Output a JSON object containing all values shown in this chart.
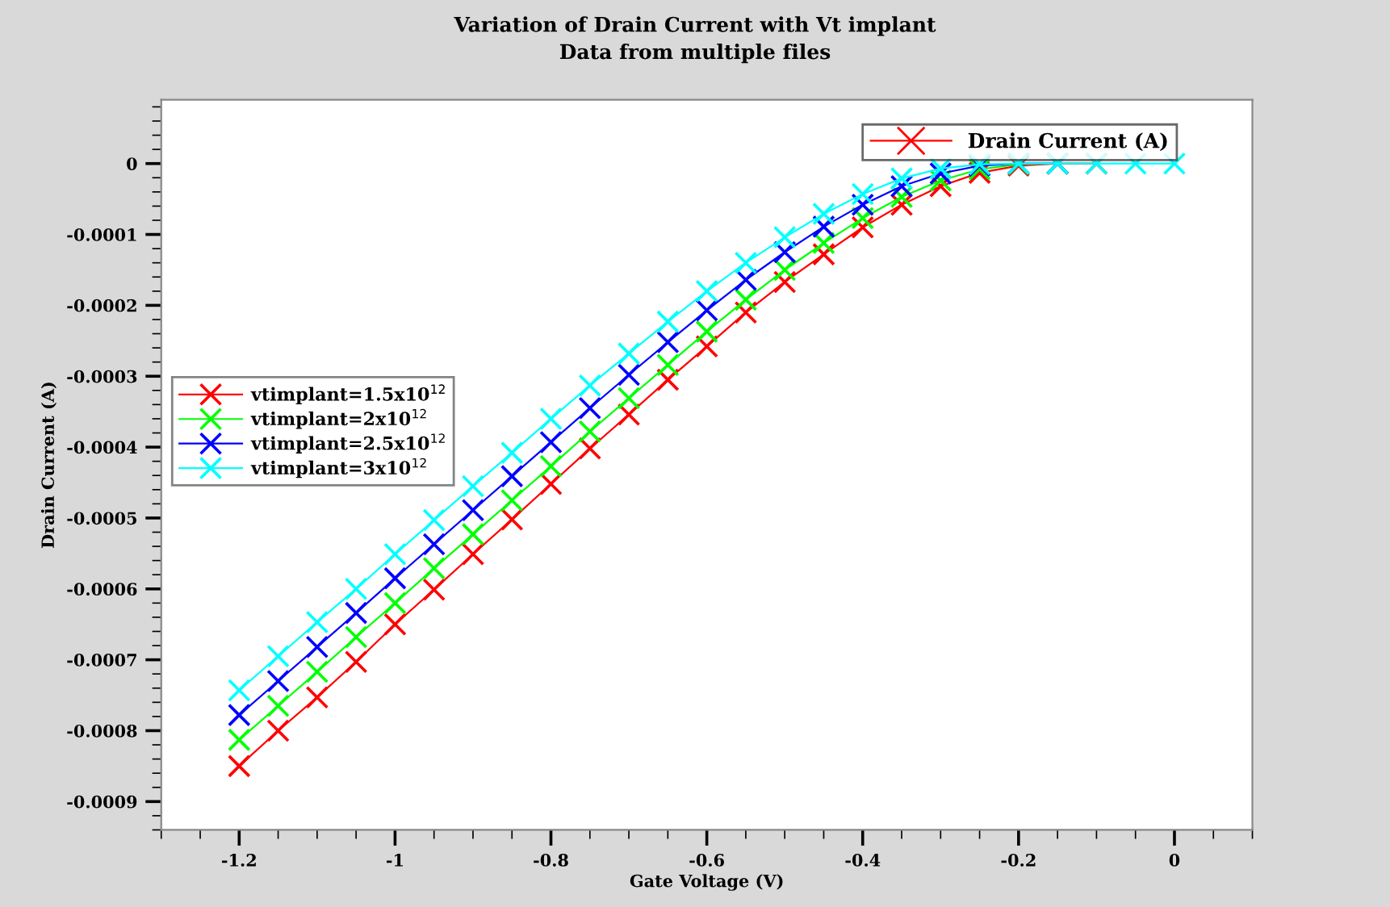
{
  "chart_data": {
    "type": "line",
    "title": "Variation of Drain Current with Vt implant",
    "subtitle": "Data from multiple files",
    "xlabel": "Gate Voltage (V)",
    "ylabel": "Drain Current (A)",
    "legend_title": "Drain Current (A)",
    "x": [
      -1.2,
      -1.15,
      -1.1,
      -1.05,
      -1.0,
      -0.95,
      -0.9,
      -0.85,
      -0.8,
      -0.75,
      -0.7,
      -0.65,
      -0.6,
      -0.55,
      -0.5,
      -0.45,
      -0.4,
      -0.35,
      -0.3,
      -0.25,
      -0.2,
      -0.15,
      -0.1,
      -0.05,
      0
    ],
    "series": [
      {
        "name": "vtimplant=1.5x10$^{12}$",
        "color": "#ff0000",
        "values": [
          -0.00085,
          -0.0008,
          -0.000753,
          -0.000703,
          -0.00065,
          -0.000601,
          -0.000551,
          -0.000502,
          -0.000452,
          -0.000402,
          -0.000354,
          -0.000305,
          -0.000258,
          -0.00021,
          -0.000167,
          -0.000128,
          -9e-05,
          -5.8e-05,
          -3.2e-05,
          -1.3e-05,
          -3e-06,
          0,
          0,
          null,
          null
        ]
      },
      {
        "name": "vtimplant=2x10$^{12}$",
        "color": "#00ff00",
        "values": [
          -0.000813,
          -0.000765,
          -0.000717,
          -0.000668,
          -0.00062,
          -0.000571,
          -0.000523,
          -0.000475,
          -0.000427,
          -0.000378,
          -0.000331,
          -0.000284,
          -0.000237,
          -0.000192,
          -0.00015,
          -0.000112,
          -7.7e-05,
          -4.7e-05,
          -2.4e-05,
          -8e-06,
          -1e-06,
          0,
          null,
          null,
          null
        ]
      },
      {
        "name": "vtimplant=2.5x10$^{12}$",
        "color": "#0000ff",
        "values": [
          -0.000778,
          -0.00073,
          -0.000682,
          -0.000634,
          -0.000585,
          -0.000537,
          -0.000489,
          -0.000441,
          -0.000393,
          -0.000345,
          -0.000298,
          -0.000252,
          -0.000207,
          -0.000164,
          -0.000125,
          -8.9e-05,
          -5.8e-05,
          -3.2e-05,
          -1.4e-05,
          -3e-06,
          0,
          0,
          null,
          null,
          null
        ]
      },
      {
        "name": "vtimplant=3x10$^{12}$",
        "color": "#00ffff",
        "values": [
          -0.000743,
          -0.000695,
          -0.000647,
          -0.0006,
          -0.000551,
          -0.000503,
          -0.000455,
          -0.000408,
          -0.00036,
          -0.000313,
          -0.000268,
          -0.000223,
          -0.00018,
          -0.00014,
          -0.000104,
          -7.1e-05,
          -4.3e-05,
          -2.1e-05,
          -7e-06,
          -1e-06,
          0,
          0,
          0,
          0,
          0
        ]
      }
    ],
    "xlim": [
      -1.3,
      0.1
    ],
    "xticks": [
      -1.2,
      -1,
      -0.8,
      -0.6,
      -0.4,
      -0.2,
      0
    ],
    "ylim": [
      -0.00094,
      9e-05
    ],
    "yticks": [
      -0.0009,
      -0.0008,
      -0.0007,
      -0.0006,
      -0.0005,
      -0.0004,
      -0.0003,
      -0.0002,
      -0.0001,
      0
    ],
    "marker": "cross",
    "line_style": "solid",
    "grid": false,
    "legend": "left"
  }
}
